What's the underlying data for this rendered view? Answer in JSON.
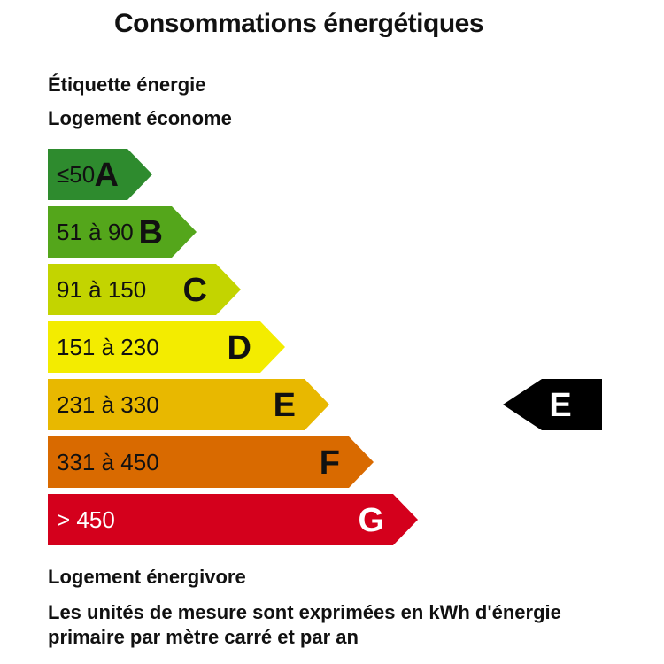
{
  "header": {
    "title": "Consommations énergétiques",
    "label_title": "Étiquette énergie",
    "top_caption": "Logement économe",
    "bottom_caption": "Logement énergivore",
    "units_note": "Les unités de mesure sont exprimées en kWh d'énergie primaire par mètre carré et par an"
  },
  "chart_data": {
    "type": "bar",
    "categories": [
      "A",
      "B",
      "C",
      "D",
      "E",
      "F",
      "G"
    ],
    "ranges": [
      "≤50",
      "51 à 90",
      "91 à 150",
      "151 à 230",
      "231 à 330",
      "331 à 450",
      "> 450"
    ],
    "colors": [
      "#2e8b2e",
      "#54a61b",
      "#c3d400",
      "#f3ec00",
      "#e8b800",
      "#d96a00",
      "#d4001c"
    ],
    "range_text_colors": [
      "#111111",
      "#111111",
      "#111111",
      "#111111",
      "#111111",
      "#111111",
      "#ffffff"
    ],
    "letter_text_colors": [
      "#111111",
      "#111111",
      "#111111",
      "#111111",
      "#111111",
      "#111111",
      "#ffffff"
    ],
    "current_rating": "E",
    "current_marker_color": "#000000",
    "current_marker_text_color": "#ffffff"
  }
}
